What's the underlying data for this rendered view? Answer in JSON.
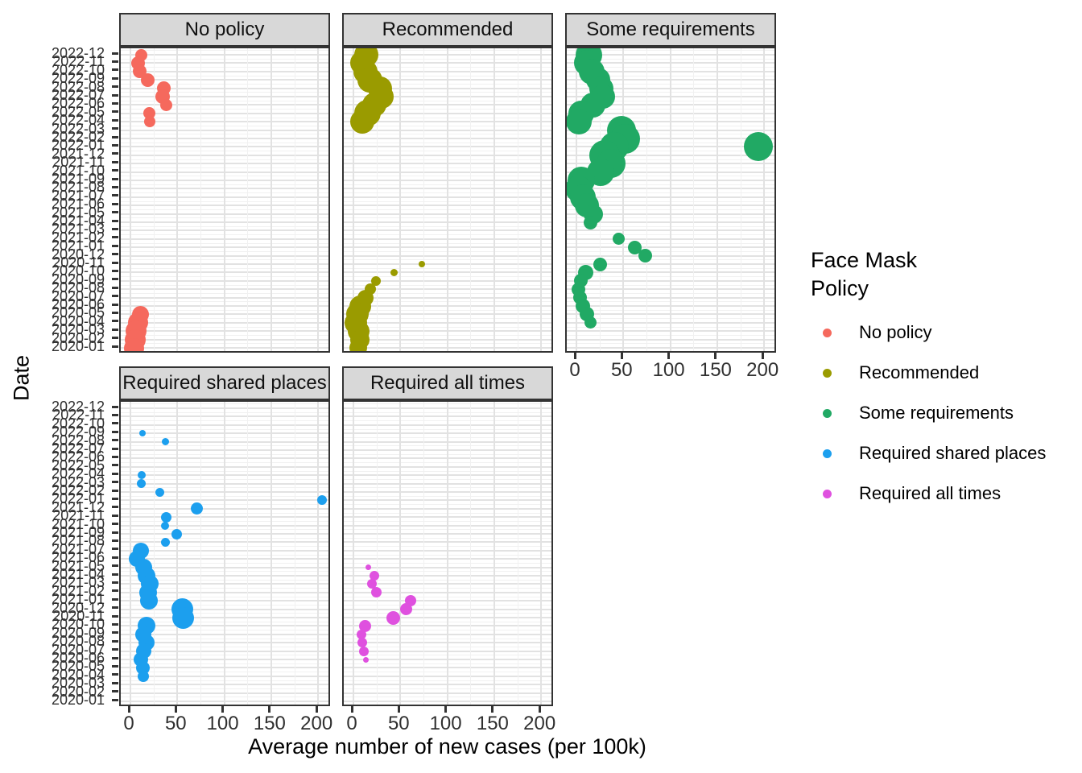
{
  "figure": {
    "background": "#FFFFFF"
  },
  "chart_data": {
    "type": "scatter",
    "title": "",
    "xlabel": "Average number of new cases (per 100k)",
    "ylabel": "Date",
    "x_ticks": [
      0,
      50,
      100,
      150,
      200
    ],
    "xlim": [
      -10,
      215
    ],
    "grid": "on",
    "legend_position": "right",
    "y_categories": [
      "2020-01",
      "2020-02",
      "2020-03",
      "2020-04",
      "2020-05",
      "2020-06",
      "2020-07",
      "2020-08",
      "2020-09",
      "2020-10",
      "2020-11",
      "2020-12",
      "2021-01",
      "2021-02",
      "2021-03",
      "2021-04",
      "2021-05",
      "2021-06",
      "2021-07",
      "2021-08",
      "2021-09",
      "2021-10",
      "2021-11",
      "2021-12",
      "2022-01",
      "2022-02",
      "2022-03",
      "2022-04",
      "2022-05",
      "2022-06",
      "2022-07",
      "2022-08",
      "2022-09",
      "2022-10",
      "2022-11",
      "2022-12"
    ],
    "y_order": "2020-01 at bottom, 2022-12 at top",
    "point_format": [
      "date",
      "x_cases_per_100k",
      "marker_radius_px"
    ],
    "facets": [
      {
        "label": "No policy",
        "row": 0,
        "col": 0,
        "color": "#F5695D",
        "points": [
          [
            "2022-12",
            12,
            7.5
          ],
          [
            "2022-11",
            8,
            8.5
          ],
          [
            "2022-10",
            9.5,
            8.5
          ],
          [
            "2022-09",
            18.5,
            8.5
          ],
          [
            "2022-08",
            36,
            8.5
          ],
          [
            "2022-07",
            34,
            9
          ],
          [
            "2022-06",
            38.5,
            7.5
          ],
          [
            "2022-05",
            20,
            7.5
          ],
          [
            "2022-04",
            21,
            7
          ],
          [
            "2020-05",
            11,
            10.5
          ],
          [
            "2020-04",
            8,
            12.5
          ],
          [
            "2020-03",
            6,
            13
          ],
          [
            "2020-02",
            5,
            13
          ],
          [
            "2020-01",
            4,
            12.5
          ]
        ]
      },
      {
        "label": "Recommended",
        "row": 0,
        "col": 1,
        "color": "#9A9B00",
        "points": [
          [
            "2022-12",
            14,
            15
          ],
          [
            "2022-11",
            9.5,
            15
          ],
          [
            "2022-10",
            13,
            15
          ],
          [
            "2022-09",
            18,
            15.5
          ],
          [
            "2022-08",
            28,
            15
          ],
          [
            "2022-07",
            30,
            15
          ],
          [
            "2022-06",
            22,
            15
          ],
          [
            "2022-05",
            15,
            16.5
          ],
          [
            "2022-04",
            9.5,
            15
          ],
          [
            "2020-11",
            72.5,
            4
          ],
          [
            "2020-10",
            43,
            4.5
          ],
          [
            "2020-09",
            24,
            6
          ],
          [
            "2020-08",
            18,
            7
          ],
          [
            "2020-07",
            12.5,
            10
          ],
          [
            "2020-06",
            7,
            13.5
          ],
          [
            "2020-05",
            4.5,
            14
          ],
          [
            "2020-04",
            3,
            14
          ],
          [
            "2020-03",
            5.5,
            13.5
          ],
          [
            "2020-02",
            7,
            12
          ],
          [
            "2020-01",
            5,
            11
          ]
        ]
      },
      {
        "label": "Some requirements",
        "row": 0,
        "col": 2,
        "color": "#21A964",
        "points": [
          [
            "2022-12",
            13,
            16.5
          ],
          [
            "2022-11",
            11.5,
            16
          ],
          [
            "2022-10",
            16,
            16
          ],
          [
            "2022-09",
            23,
            15
          ],
          [
            "2022-08",
            27,
            15
          ],
          [
            "2022-07",
            28.5,
            15
          ],
          [
            "2022-06",
            18,
            15.5
          ],
          [
            "2022-05",
            5,
            16
          ],
          [
            "2022-04",
            2.5,
            16
          ],
          [
            "2022-03",
            48,
            18
          ],
          [
            "2022-02",
            52,
            18.5
          ],
          [
            "2022-01",
            40,
            18
          ],
          [
            "2022-01",
            194,
            18
          ],
          [
            "2021-12",
            30,
            19
          ],
          [
            "2021-11",
            37,
            18
          ],
          [
            "2021-10",
            25.5,
            17
          ],
          [
            "2021-09",
            5,
            17
          ],
          [
            "2021-08",
            2,
            16.5
          ],
          [
            "2021-07",
            6.5,
            16
          ],
          [
            "2021-06",
            11,
            15
          ],
          [
            "2021-05",
            18,
            12
          ],
          [
            "2021-04",
            15,
            8.5
          ],
          [
            "2021-02",
            45,
            7.5
          ],
          [
            "2021-01",
            62,
            8.5
          ],
          [
            "2020-12",
            73.5,
            8.5
          ],
          [
            "2020-11",
            25,
            8.5
          ],
          [
            "2020-10",
            10,
            9.5
          ],
          [
            "2020-09",
            4.5,
            8.5
          ],
          [
            "2020-08",
            2,
            8.5
          ],
          [
            "2020-07",
            3.5,
            8.5
          ],
          [
            "2020-06",
            7,
            9
          ],
          [
            "2020-05",
            11.5,
            9
          ],
          [
            "2020-04",
            15,
            7.5
          ]
        ]
      },
      {
        "label": "Required shared places",
        "row": 1,
        "col": 0,
        "color": "#1C9FEE",
        "points": [
          [
            "2022-09",
            13,
            4
          ],
          [
            "2022-08",
            37,
            4.5
          ],
          [
            "2022-04",
            12,
            5
          ],
          [
            "2022-03",
            11.5,
            5.5
          ],
          [
            "2022-02",
            31,
            5.5
          ],
          [
            "2022-01",
            204,
            6
          ],
          [
            "2021-12",
            71,
            7.5
          ],
          [
            "2021-11",
            38,
            6.5
          ],
          [
            "2021-10",
            37,
            5
          ],
          [
            "2021-09",
            49,
            6.5
          ],
          [
            "2021-08",
            37,
            5.5
          ],
          [
            "2021-07",
            11.5,
            10
          ],
          [
            "2021-06",
            7,
            10
          ],
          [
            "2021-05",
            14,
            10.5
          ],
          [
            "2021-04",
            17,
            11
          ],
          [
            "2021-03",
            21,
            11
          ],
          [
            "2021-02",
            19,
            11
          ],
          [
            "2021-01",
            20,
            11
          ],
          [
            "2020-12",
            55,
            13.5
          ],
          [
            "2020-11",
            56,
            13.5
          ],
          [
            "2020-10",
            17,
            11
          ],
          [
            "2020-09",
            14,
            10
          ],
          [
            "2020-08",
            17,
            10
          ],
          [
            "2020-07",
            14,
            9.5
          ],
          [
            "2020-06",
            11,
            9
          ],
          [
            "2020-05",
            13,
            8.5
          ],
          [
            "2020-04",
            14,
            7
          ]
        ]
      },
      {
        "label": "Required all times",
        "row": 1,
        "col": 1,
        "color": "#DF51DF",
        "points": [
          [
            "2021-05",
            16,
            3.5
          ],
          [
            "2021-04",
            22.5,
            6
          ],
          [
            "2021-03",
            19.5,
            6
          ],
          [
            "2021-02",
            24.5,
            6.5
          ],
          [
            "2021-01",
            61,
            7
          ],
          [
            "2020-12",
            56,
            7.5
          ],
          [
            "2020-11",
            42.5,
            8.5
          ],
          [
            "2020-10",
            12.5,
            7.5
          ],
          [
            "2020-09",
            9,
            6
          ],
          [
            "2020-08",
            9.5,
            6
          ],
          [
            "2020-07",
            11,
            6
          ],
          [
            "2020-06",
            13,
            3.5
          ]
        ]
      },
      {
        "label": "",
        "row": 1,
        "col": 2,
        "color": "",
        "points": null
      }
    ],
    "legend": {
      "title": "Face Mask\nPolicy",
      "items": [
        {
          "label": "No policy",
          "color": "#F5695D"
        },
        {
          "label": "Recommended",
          "color": "#9A9B00"
        },
        {
          "label": "Some requirements",
          "color": "#21A964"
        },
        {
          "label": "Required shared places",
          "color": "#1C9FEE"
        },
        {
          "label": "Required all times",
          "color": "#DF51DF"
        }
      ]
    }
  }
}
